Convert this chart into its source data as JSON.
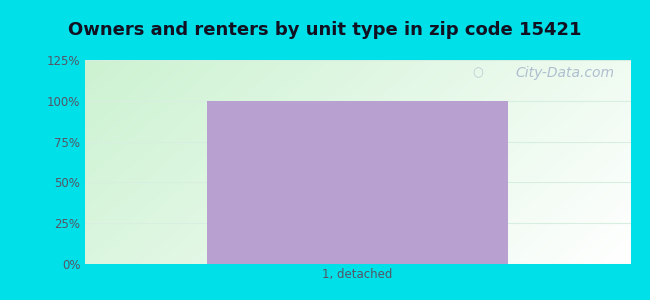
{
  "title": "Owners and renters by unit type in zip code 15421",
  "categories": [
    "1, detached"
  ],
  "values": [
    100
  ],
  "bar_color": "#b8a0d0",
  "bar_width": 0.55,
  "ylim": [
    0,
    125
  ],
  "yticks": [
    0,
    25,
    50,
    75,
    100,
    125
  ],
  "yticklabels": [
    "0%",
    "25%",
    "50%",
    "75%",
    "100%",
    "125%"
  ],
  "background_outer": "#00e0e8",
  "grad_topleft": "#b8e8c0",
  "grad_topright": "#e8f8f0",
  "grad_bottomleft": "#d0f0d8",
  "grad_bottomright": "#f8fffc",
  "grid_color": "#d8eee0",
  "title_fontsize": 13,
  "title_color": "#111122",
  "tick_color": "#555566",
  "watermark": "City-Data.com",
  "watermark_color": "#a8b8cc",
  "watermark_fontsize": 10
}
